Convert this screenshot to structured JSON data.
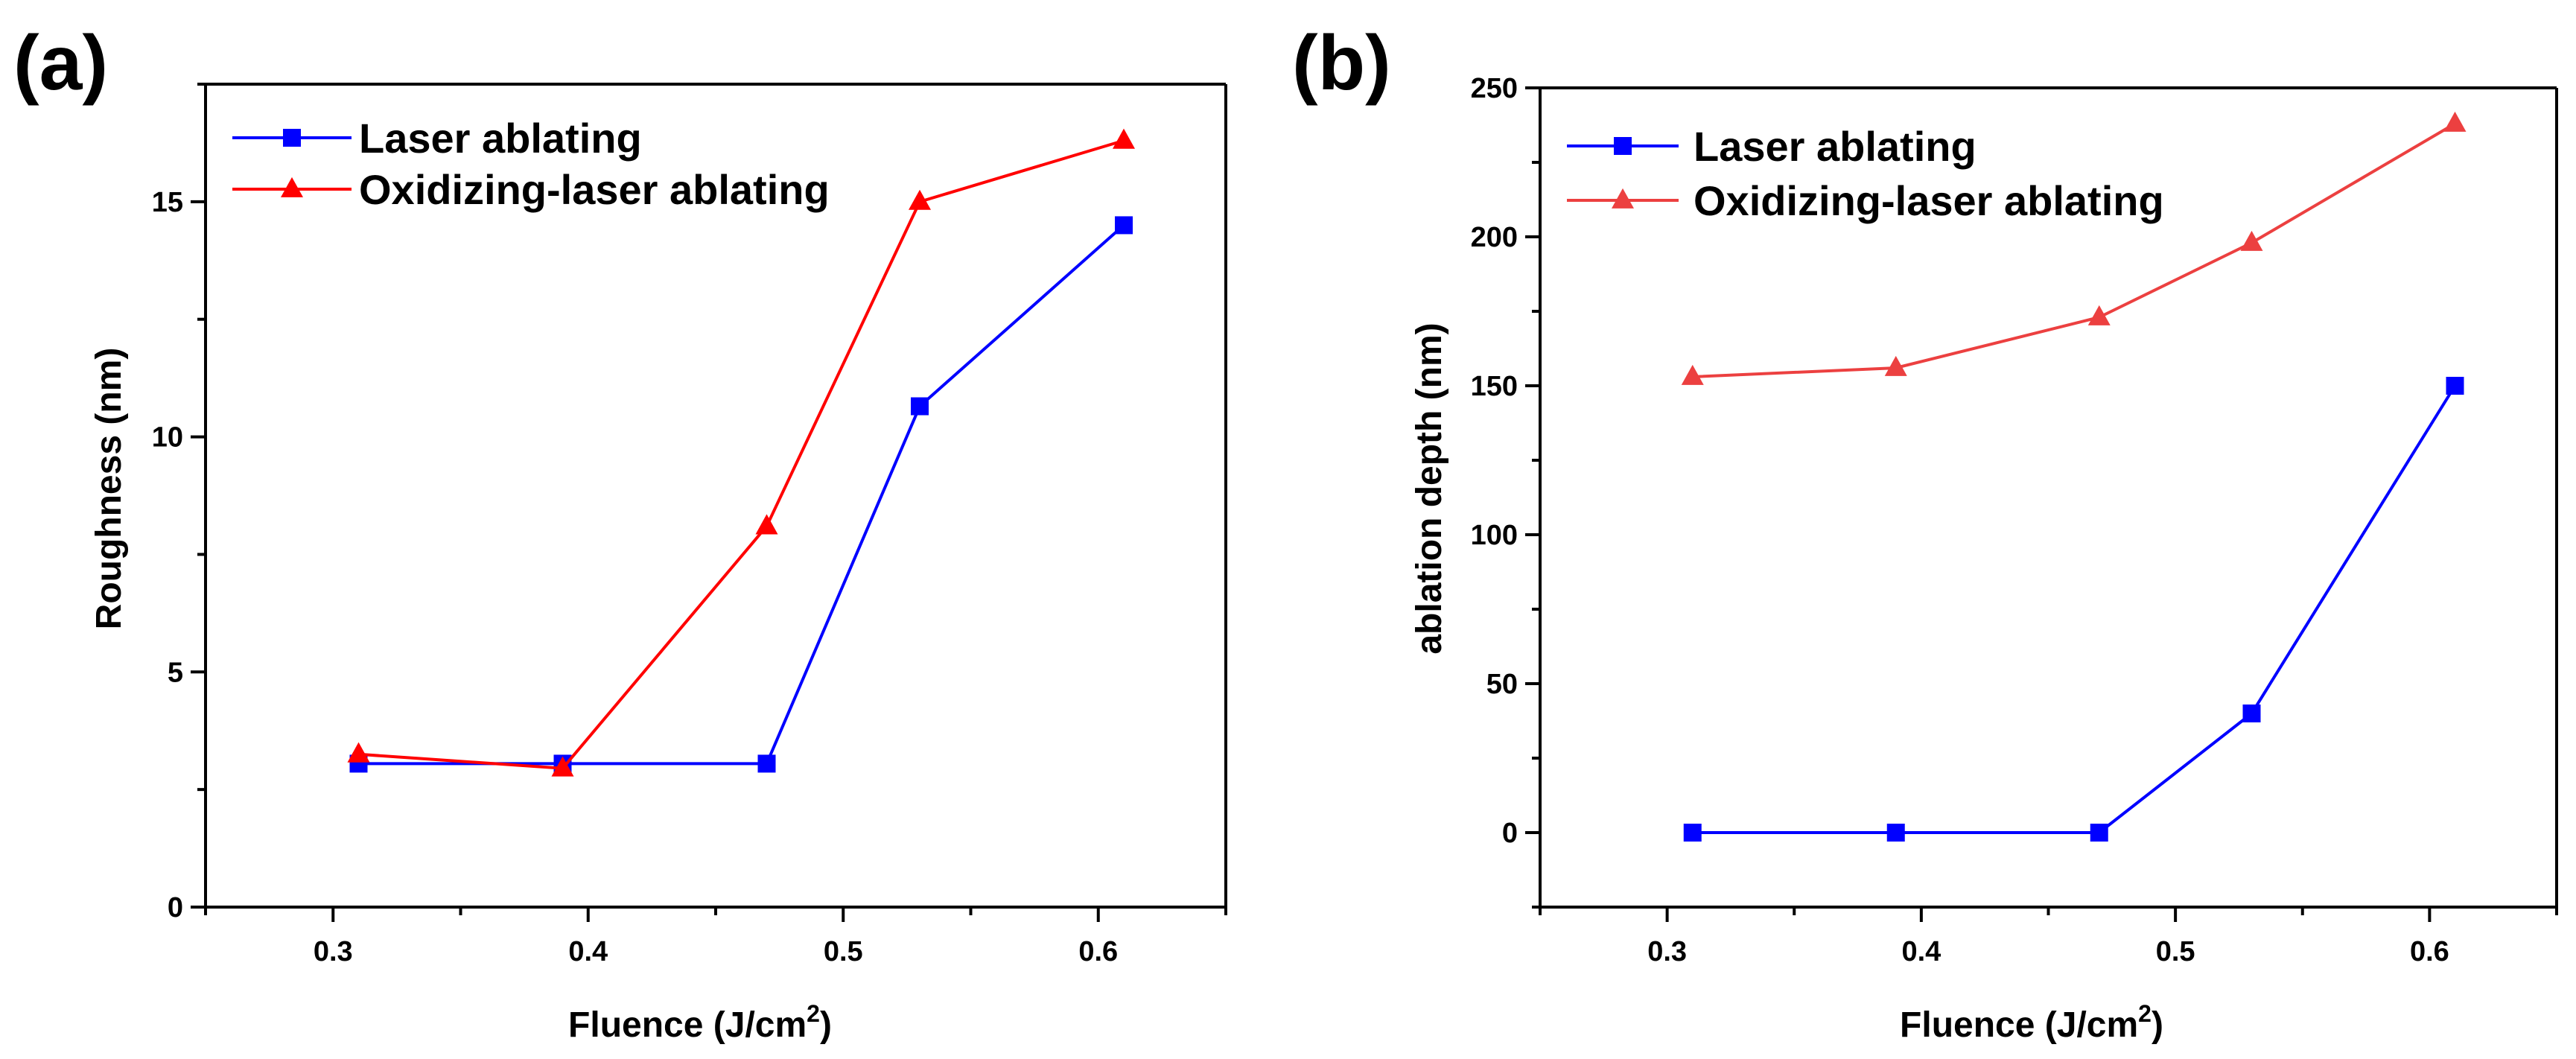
{
  "chart_data": [
    {
      "panel_label": "(a)",
      "type": "line",
      "xlabel_main": "Fluence (J/cm",
      "xlabel_sup": "2",
      "xlabel_end": ")",
      "ylabel": "Roughness (nm)",
      "xlim": [
        0.25,
        0.65
      ],
      "ylim": [
        0,
        17.5
      ],
      "xticks": [
        0.3,
        0.4,
        0.5,
        0.6
      ],
      "xtick_labels": [
        "0.3",
        "0.4",
        "0.5",
        "0.6"
      ],
      "yticks": [
        0,
        5,
        10,
        15
      ],
      "ytick_labels": [
        "0",
        "5",
        "10",
        "15"
      ],
      "legend_position": "top-left",
      "x": [
        0.31,
        0.39,
        0.47,
        0.53,
        0.61
      ],
      "series": [
        {
          "name": "Laser ablating",
          "color": "#0000ff",
          "marker": "square",
          "values": [
            3.05,
            3.05,
            3.05,
            10.65,
            14.5
          ]
        },
        {
          "name": "Oxidizing-laser ablating",
          "color": "#ff0000",
          "marker": "triangle",
          "values": [
            3.25,
            2.95,
            8.1,
            15.0,
            16.3
          ]
        }
      ]
    },
    {
      "panel_label": "(b)",
      "type": "line",
      "xlabel_main": "Fluence (J/cm",
      "xlabel_sup": "2",
      "xlabel_end": ")",
      "ylabel": "ablation depth (nm)",
      "xlim": [
        0.25,
        0.65
      ],
      "ylim": [
        -25,
        250
      ],
      "xticks": [
        0.3,
        0.4,
        0.5,
        0.6
      ],
      "xtick_labels": [
        "0.3",
        "0.4",
        "0.5",
        "0.6"
      ],
      "yticks": [
        0,
        50,
        100,
        150,
        200,
        250
      ],
      "ytick_labels": [
        "0",
        "50",
        "100",
        "150",
        "200",
        "250"
      ],
      "legend_position": "top-left",
      "x": [
        0.31,
        0.39,
        0.47,
        0.53,
        0.61
      ],
      "series": [
        {
          "name": "Laser ablating",
          "color": "#0000ff",
          "marker": "square",
          "values": [
            0,
            0,
            0,
            40,
            150
          ]
        },
        {
          "name": "Oxidizing-laser ablating",
          "color": "#ec4040",
          "marker": "triangle",
          "values": [
            153,
            156,
            173,
            198,
            238
          ]
        }
      ]
    }
  ]
}
